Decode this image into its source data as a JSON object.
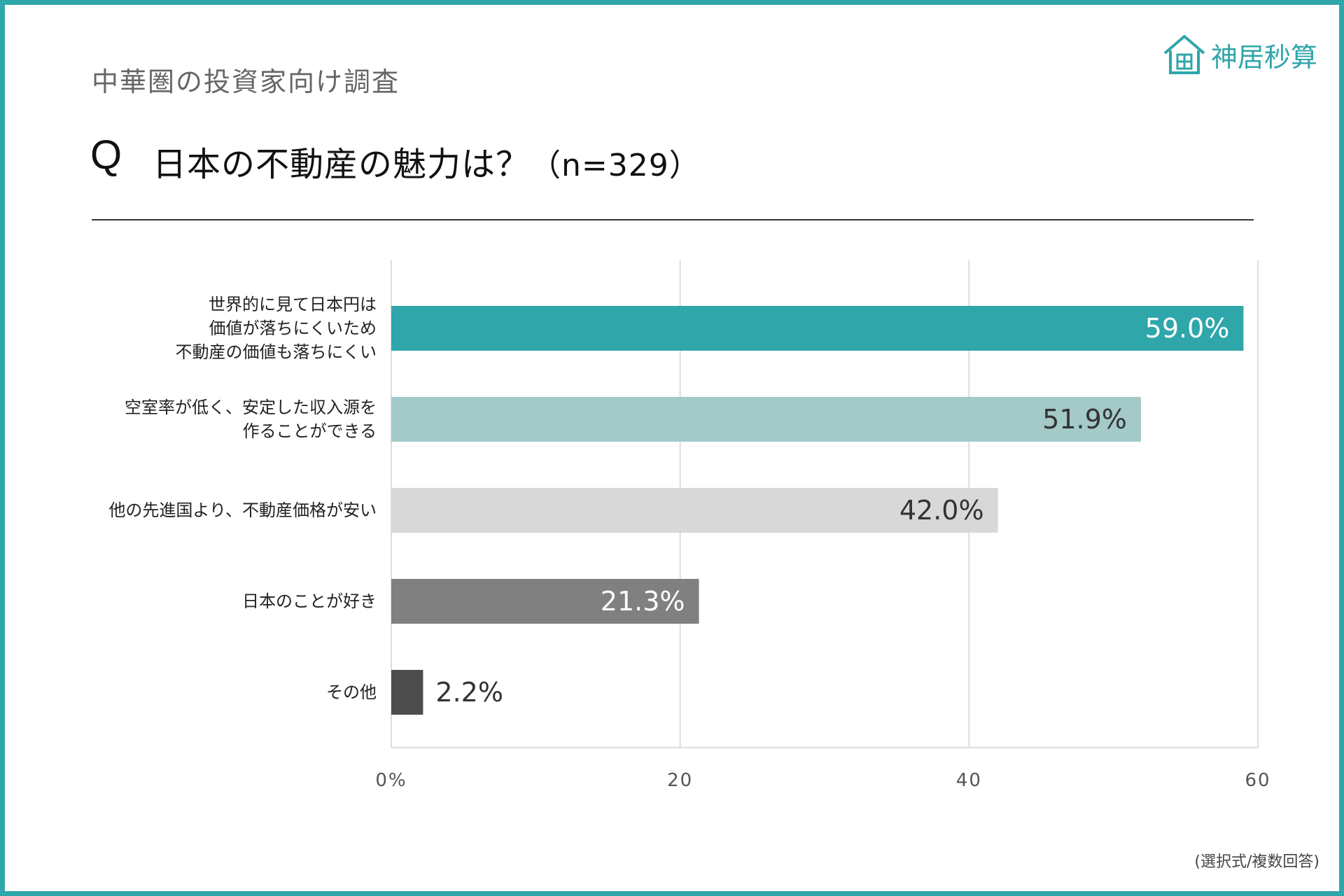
{
  "header": {
    "survey_title": "中華圏の投資家向け調査",
    "q_mark": "Q",
    "question": "日本の不動産の魅力は？",
    "sample": "（n=329）"
  },
  "logo": {
    "text": "神居秒算",
    "icon": "house-icon"
  },
  "footnote": "(選択式/複数回答)",
  "colors": {
    "frame": "#2fa6aa",
    "grid": "#dddddd"
  },
  "chart_data": {
    "type": "bar",
    "orientation": "horizontal",
    "title": "日本の不動産の魅力は？（n=329）",
    "xlim": [
      0,
      60
    ],
    "x_ticks": [
      "0%",
      "20",
      "40",
      "60"
    ],
    "categories": [
      [
        "世界的に見て日本円は",
        "価値が落ちにくいため",
        "不動産の価値も落ちにくい"
      ],
      [
        "空室率が低く、安定した収入源を",
        "作ることができる"
      ],
      [
        "他の先進国より、不動産価格が安い"
      ],
      [
        "日本のことが好き"
      ],
      [
        "その他"
      ]
    ],
    "values": [
      59.0,
      51.9,
      42.0,
      21.3,
      2.2
    ],
    "value_labels": [
      "59.0%",
      "51.9%",
      "42.0%",
      "21.3%",
      "2.2%"
    ],
    "bar_colors": [
      "#2fa6aa",
      "#a3c9c9",
      "#d9d8d8",
      "#808080",
      "#4d4d4d"
    ],
    "label_colors": [
      "#ffffff",
      "#333333",
      "#333333",
      "#ffffff",
      "#333333"
    ],
    "label_inside": [
      true,
      true,
      true,
      true,
      false
    ],
    "grid": true
  }
}
